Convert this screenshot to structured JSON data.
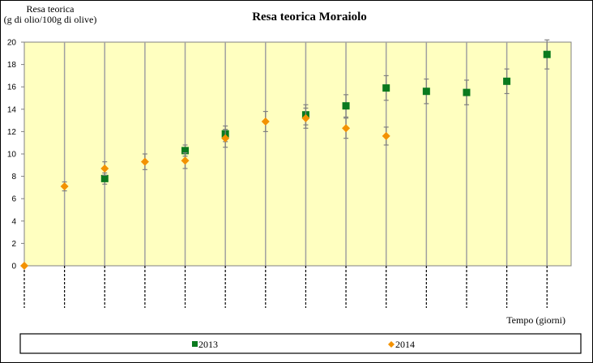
{
  "chart_data": {
    "type": "scatter",
    "title": "Resa teorica Moraiolo",
    "ylabel": [
      "Resa teorica",
      "(g di olio/100g di olive)"
    ],
    "xlabel": "Tempo (giorni)",
    "ylim": [
      0,
      20
    ],
    "ytick_step": 2,
    "x_category_count": 13,
    "x_tick_labels": [],
    "grid": {
      "vertical": true,
      "horizontal": false
    },
    "plot_background": "#ffffc0",
    "legend_position": "bottom",
    "series": [
      {
        "name": "2013",
        "marker": "square",
        "color": "#0a7a1e",
        "points": [
          {
            "x": 2,
            "y": 7.8,
            "err": 0.5
          },
          {
            "x": 4,
            "y": 10.3,
            "err": 0.5
          },
          {
            "x": 5,
            "y": 11.8,
            "err": 0.7
          },
          {
            "x": 7,
            "y": 13.5,
            "err": 0.9
          },
          {
            "x": 8,
            "y": 14.3,
            "err": 1.0
          },
          {
            "x": 9,
            "y": 15.9,
            "err": 1.1
          },
          {
            "x": 10,
            "y": 15.6,
            "err": 1.1
          },
          {
            "x": 11,
            "y": 15.5,
            "err": 1.1
          },
          {
            "x": 12,
            "y": 16.5,
            "err": 1.1
          },
          {
            "x": 13,
            "y": 18.9,
            "err": 1.3
          }
        ]
      },
      {
        "name": "2014",
        "marker": "diamond",
        "color": "#f39200",
        "points": [
          {
            "x": 0,
            "y": 0,
            "err": 0
          },
          {
            "x": 1,
            "y": 7.1,
            "err": 0.4
          },
          {
            "x": 2,
            "y": 8.7,
            "err": 0.6
          },
          {
            "x": 3,
            "y": 9.3,
            "err": 0.7
          },
          {
            "x": 4,
            "y": 9.4,
            "err": 0.7
          },
          {
            "x": 5,
            "y": 11.4,
            "err": 0.8
          },
          {
            "x": 6,
            "y": 12.9,
            "err": 0.9
          },
          {
            "x": 7,
            "y": 13.2,
            "err": 0.9
          },
          {
            "x": 8,
            "y": 12.3,
            "err": 0.9
          },
          {
            "x": 9,
            "y": 11.6,
            "err": 0.8
          }
        ]
      }
    ]
  }
}
